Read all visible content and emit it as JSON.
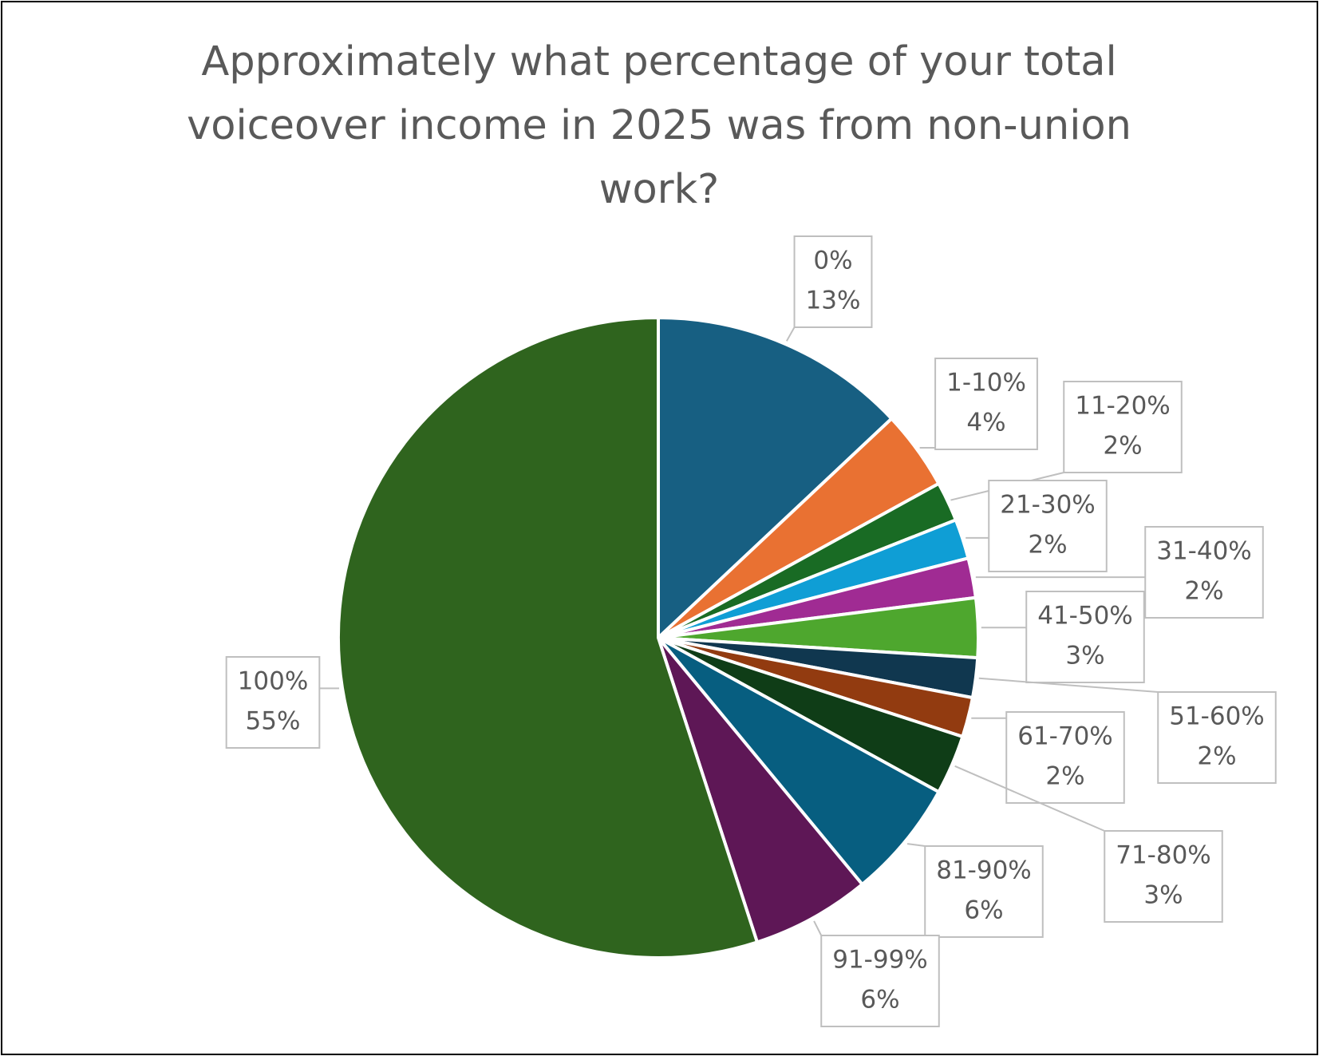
{
  "chart_data": {
    "type": "pie",
    "title": "Approximately what percentage of your total voiceover income in 2025 was from non-union work?",
    "categories": [
      "0%",
      "1-10%",
      "11-20%",
      "21-30%",
      "31-40%",
      "41-50%",
      "51-60%",
      "61-70%",
      "71-80%",
      "81-90%",
      "91-99%",
      "100%"
    ],
    "values": [
      13,
      4,
      2,
      2,
      2,
      3,
      2,
      2,
      3,
      6,
      6,
      55
    ],
    "value_labels": [
      "13%",
      "4%",
      "2%",
      "2%",
      "2%",
      "3%",
      "2%",
      "2%",
      "3%",
      "6%",
      "6%",
      "55%"
    ],
    "colors": [
      "#175f82",
      "#e97132",
      "#196b24",
      "#0f9ed5",
      "#a02b93",
      "#4ea72e",
      "#10374f",
      "#923b10",
      "#0f3d17",
      "#075e80",
      "#5e1756",
      "#2f641e"
    ]
  }
}
